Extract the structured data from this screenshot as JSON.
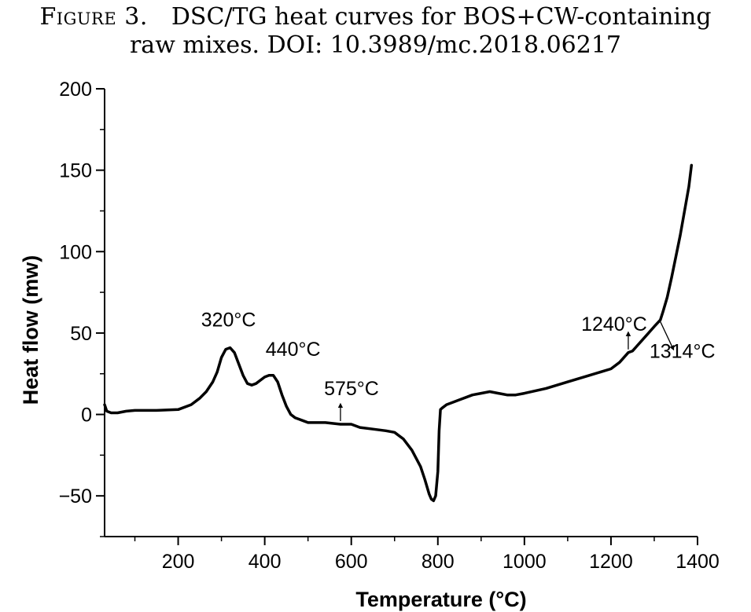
{
  "caption": {
    "figure_label": "Figure 3.",
    "line1": "DSC/TG heat curves for BOS+CW-containing",
    "line2": "raw mixes. DOI: 10.3989/mc.2018.06217"
  },
  "chart_data": {
    "type": "line",
    "xlabel": "Temperature (°C)",
    "ylabel": "Heat flow (mw)",
    "xlim": [
      30,
      1400
    ],
    "ylim": [
      -75,
      200
    ],
    "x_ticks": [
      200,
      400,
      600,
      800,
      1000,
      1200,
      1400
    ],
    "y_ticks": [
      -50,
      0,
      50,
      100,
      150,
      200
    ],
    "y_tick_labels": [
      "−50",
      "0",
      "50",
      "100",
      "150",
      "200"
    ],
    "grid": false,
    "legend": "none",
    "series": [
      {
        "color": "#000000",
        "x": [
          30,
          35,
          45,
          60,
          80,
          100,
          150,
          200,
          230,
          250,
          265,
          280,
          290,
          300,
          310,
          320,
          330,
          340,
          350,
          360,
          370,
          380,
          390,
          400,
          410,
          420,
          430,
          440,
          450,
          460,
          470,
          480,
          490,
          500,
          520,
          540,
          575,
          600,
          620,
          650,
          680,
          700,
          720,
          740,
          760,
          770,
          780,
          785,
          790,
          795,
          800,
          803,
          806,
          810,
          820,
          850,
          880,
          900,
          920,
          940,
          960,
          980,
          1000,
          1050,
          1100,
          1150,
          1200,
          1220,
          1240,
          1250,
          1260,
          1280,
          1300,
          1314,
          1320,
          1330,
          1340,
          1350,
          1360,
          1370,
          1380,
          1386
        ],
        "y": [
          6,
          2,
          1,
          1,
          2,
          2.5,
          2.5,
          3,
          6,
          10,
          14,
          20,
          26,
          35,
          40,
          41,
          38,
          31,
          24,
          19,
          18,
          19,
          21,
          23,
          24,
          24,
          20,
          12,
          5,
          0,
          -2,
          -3,
          -4,
          -5,
          -5,
          -5,
          -6,
          -6,
          -8,
          -9,
          -10,
          -11,
          -15,
          -22,
          -32,
          -40,
          -49,
          -52,
          -53,
          -50,
          -35,
          -10,
          3,
          4,
          6,
          9,
          12,
          13,
          14,
          13,
          12,
          12,
          13,
          16,
          20,
          24,
          28,
          32,
          38,
          39,
          42,
          48,
          54,
          58,
          63,
          72,
          84,
          97,
          110,
          125,
          140,
          153
        ]
      }
    ],
    "annotations": [
      {
        "text": "320°C",
        "x": 320,
        "y": 41
      },
      {
        "text": "440°C",
        "x": 440,
        "y": 24
      },
      {
        "text": "575°C",
        "x": 575,
        "y": -6
      },
      {
        "text": "1240°C",
        "x": 1240,
        "y": 38
      },
      {
        "text": "1314°C",
        "x": 1314,
        "y": 58
      }
    ]
  }
}
